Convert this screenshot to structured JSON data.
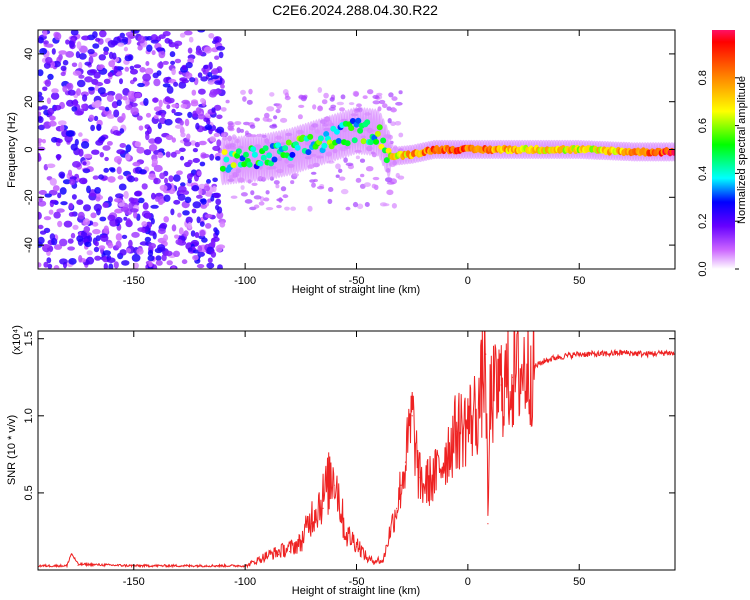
{
  "title": "C2E6.2024.288.04.30.R22",
  "chart_data": [
    {
      "type": "heatmap",
      "xlabel": "Height of straight line (km)",
      "ylabel": "Frequency (Hz)",
      "xlim": [
        -193,
        93
      ],
      "ylim": [
        -50,
        50
      ],
      "xticks": [
        -150,
        -100,
        -50,
        0,
        50
      ],
      "yticks": [
        -40,
        -20,
        0,
        20,
        40
      ],
      "colorbar": {
        "label": "Normalized spectral amplitude",
        "range": [
          0,
          1
        ],
        "ticks": [
          0.0,
          0.2,
          0.4,
          0.6,
          0.8
        ],
        "colors": [
          "#ffffff",
          "#cc66ff",
          "#6600ff",
          "#0000ff",
          "#00ffff",
          "#00ff00",
          "#ffff00",
          "#ff8800",
          "#ff0000"
        ]
      },
      "ridge": [
        {
          "x": -110,
          "y": -5,
          "amp": 0.5
        },
        {
          "x": -100,
          "y": -4,
          "amp": 0.45
        },
        {
          "x": -90,
          "y": -3,
          "amp": 0.4
        },
        {
          "x": -80,
          "y": -1,
          "amp": 0.45
        },
        {
          "x": -70,
          "y": 2,
          "amp": 0.45
        },
        {
          "x": -60,
          "y": 5,
          "amp": 0.45
        },
        {
          "x": -50,
          "y": 8,
          "amp": 0.45
        },
        {
          "x": -40,
          "y": 7,
          "amp": 0.5
        },
        {
          "x": -35,
          "y": -3,
          "amp": 0.65
        },
        {
          "x": -25,
          "y": -2,
          "amp": 0.75
        },
        {
          "x": -15,
          "y": 0,
          "amp": 0.85
        },
        {
          "x": 0,
          "y": 0,
          "amp": 0.85
        },
        {
          "x": 10,
          "y": 0,
          "amp": 0.8
        },
        {
          "x": 25,
          "y": 0,
          "amp": 0.7
        },
        {
          "x": 50,
          "y": 0,
          "amp": 0.65
        },
        {
          "x": 75,
          "y": -1,
          "amp": 0.75
        },
        {
          "x": 90,
          "y": -1,
          "amp": 0.9
        }
      ]
    },
    {
      "type": "line",
      "xlabel": "Height of straight line (km)",
      "ylabel": "SNR (10 * v/v)",
      "yscale_label": "(x10⁴)",
      "xlim": [
        -193,
        93
      ],
      "ylim": [
        0,
        1.55
      ],
      "xticks": [
        -150,
        -100,
        -50,
        0,
        50
      ],
      "yticks": [
        0.5,
        1.0,
        1.5
      ],
      "color": "#ee2222",
      "x": [
        -193,
        -180,
        -178,
        -175,
        -150,
        -125,
        -100,
        -95,
        -90,
        -85,
        -80,
        -75,
        -70,
        -65,
        -60,
        -55,
        -50,
        -45,
        -42,
        -38,
        -35,
        -32,
        -30,
        -28,
        -25,
        -22,
        -20,
        -15,
        -10,
        -5,
        0,
        5,
        8,
        9,
        10,
        15,
        20,
        25,
        30,
        35,
        40,
        50,
        60,
        70,
        80,
        90,
        93
      ],
      "y": [
        0.02,
        0.02,
        0.1,
        0.03,
        0.02,
        0.02,
        0.02,
        0.05,
        0.08,
        0.1,
        0.12,
        0.15,
        0.3,
        0.4,
        0.55,
        0.2,
        0.15,
        0.06,
        0.05,
        0.06,
        0.25,
        0.4,
        0.55,
        0.7,
        1.0,
        0.6,
        0.55,
        0.6,
        0.75,
        0.9,
        0.95,
        1.05,
        1.4,
        0.3,
        1.1,
        1.2,
        1.25,
        1.3,
        1.32,
        1.36,
        1.38,
        1.4,
        1.4,
        1.41,
        1.4,
        1.41,
        1.4
      ]
    }
  ]
}
